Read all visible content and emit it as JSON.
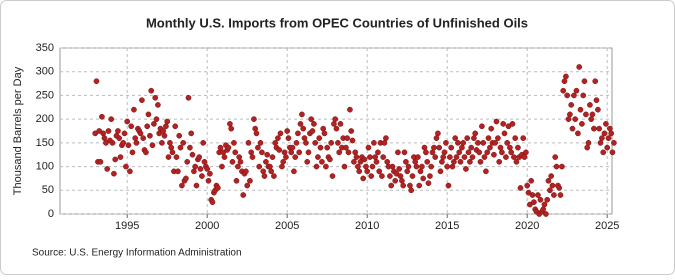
{
  "chart_data": {
    "type": "scatter",
    "title": "Monthly U.S. Imports from OPEC Countries of Unfinished Oils",
    "y_label": "Thousand Barrels per Day",
    "source": "Source: U.S. Energy Information Administration",
    "color": "#b22222",
    "grid": true,
    "xlim": [
      1990.8,
      2025.3
    ],
    "xticks": [
      1995,
      2000,
      2005,
      2010,
      2015,
      2020,
      2025
    ],
    "ylim": [
      0,
      350
    ],
    "yticks": [
      0,
      50,
      100,
      150,
      200,
      250,
      300,
      350
    ],
    "x": [
      1993,
      1993.08,
      1993.17,
      1993.25,
      1993.33,
      1993.42,
      1993.5,
      1993.58,
      1993.67,
      1993.75,
      1993.83,
      1993.92,
      1994,
      1994.08,
      1994.17,
      1994.25,
      1994.33,
      1994.42,
      1994.5,
      1994.58,
      1994.67,
      1994.75,
      1994.83,
      1994.92,
      1995,
      1995.08,
      1995.17,
      1995.25,
      1995.33,
      1995.42,
      1995.5,
      1995.58,
      1995.67,
      1995.75,
      1995.83,
      1995.92,
      1996,
      1996.08,
      1996.17,
      1996.25,
      1996.33,
      1996.42,
      1996.5,
      1996.58,
      1996.67,
      1996.75,
      1996.83,
      1996.92,
      1997,
      1997.08,
      1997.17,
      1997.25,
      1997.33,
      1997.42,
      1997.5,
      1997.58,
      1997.67,
      1997.75,
      1997.83,
      1997.92,
      1998,
      1998.08,
      1998.17,
      1998.25,
      1998.33,
      1998.42,
      1998.5,
      1998.58,
      1998.67,
      1998.75,
      1998.83,
      1998.92,
      1999,
      1999.08,
      1999.17,
      1999.25,
      1999.33,
      1999.42,
      1999.5,
      1999.58,
      1999.67,
      1999.75,
      1999.83,
      1999.92,
      2000,
      2000.08,
      2000.17,
      2000.25,
      2000.33,
      2000.42,
      2000.5,
      2000.58,
      2000.67,
      2000.75,
      2000.83,
      2000.92,
      2001,
      2001.08,
      2001.17,
      2001.25,
      2001.33,
      2001.42,
      2001.5,
      2001.58,
      2001.67,
      2001.75,
      2001.83,
      2001.92,
      2002,
      2002.08,
      2002.17,
      2002.25,
      2002.33,
      2002.42,
      2002.5,
      2002.58,
      2002.67,
      2002.75,
      2002.83,
      2002.92,
      2003,
      2003.08,
      2003.17,
      2003.25,
      2003.33,
      2003.42,
      2003.5,
      2003.58,
      2003.67,
      2003.75,
      2003.83,
      2003.92,
      2004,
      2004.08,
      2004.17,
      2004.25,
      2004.33,
      2004.42,
      2004.5,
      2004.58,
      2004.67,
      2004.75,
      2004.83,
      2004.92,
      2005,
      2005.08,
      2005.17,
      2005.25,
      2005.33,
      2005.42,
      2005.5,
      2005.58,
      2005.67,
      2005.75,
      2005.83,
      2005.92,
      2006,
      2006.08,
      2006.17,
      2006.25,
      2006.33,
      2006.42,
      2006.5,
      2006.58,
      2006.67,
      2006.75,
      2006.83,
      2006.92,
      2007,
      2007.08,
      2007.17,
      2007.25,
      2007.33,
      2007.42,
      2007.5,
      2007.58,
      2007.67,
      2007.75,
      2007.83,
      2007.92,
      2008,
      2008.08,
      2008.17,
      2008.25,
      2008.33,
      2008.42,
      2008.5,
      2008.58,
      2008.67,
      2008.75,
      2008.83,
      2008.92,
      2009,
      2009.08,
      2009.17,
      2009.25,
      2009.33,
      2009.42,
      2009.5,
      2009.58,
      2009.67,
      2009.75,
      2009.83,
      2009.92,
      2010,
      2010.08,
      2010.17,
      2010.25,
      2010.33,
      2010.42,
      2010.5,
      2010.58,
      2010.67,
      2010.75,
      2010.83,
      2010.92,
      2011,
      2011.08,
      2011.17,
      2011.25,
      2011.33,
      2011.42,
      2011.5,
      2011.58,
      2011.67,
      2011.75,
      2011.83,
      2011.92,
      2012,
      2012.08,
      2012.17,
      2012.25,
      2012.33,
      2012.42,
      2012.5,
      2012.58,
      2012.67,
      2012.75,
      2012.83,
      2012.92,
      2013,
      2013.08,
      2013.17,
      2013.25,
      2013.33,
      2013.42,
      2013.5,
      2013.58,
      2013.67,
      2013.75,
      2013.83,
      2013.92,
      2014,
      2014.08,
      2014.17,
      2014.25,
      2014.33,
      2014.42,
      2014.5,
      2014.58,
      2014.67,
      2014.75,
      2014.83,
      2014.92,
      2015,
      2015.08,
      2015.17,
      2015.25,
      2015.33,
      2015.42,
      2015.5,
      2015.58,
      2015.67,
      2015.75,
      2015.83,
      2015.92,
      2016,
      2016.08,
      2016.17,
      2016.25,
      2016.33,
      2016.42,
      2016.5,
      2016.58,
      2016.67,
      2016.75,
      2016.83,
      2016.92,
      2017,
      2017.08,
      2017.17,
      2017.25,
      2017.33,
      2017.42,
      2017.5,
      2017.58,
      2017.67,
      2017.75,
      2017.83,
      2017.92,
      2018,
      2018.08,
      2018.17,
      2018.25,
      2018.33,
      2018.42,
      2018.5,
      2018.58,
      2018.67,
      2018.75,
      2018.83,
      2018.92,
      2019,
      2019.08,
      2019.17,
      2019.25,
      2019.33,
      2019.42,
      2019.5,
      2019.58,
      2019.67,
      2019.75,
      2019.83,
      2019.92,
      2020,
      2020.08,
      2020.17,
      2020.25,
      2020.33,
      2020.42,
      2020.5,
      2020.58,
      2020.67,
      2020.75,
      2020.83,
      2020.92,
      2021,
      2021.08,
      2021.17,
      2021.25,
      2021.33,
      2021.42,
      2021.5,
      2021.58,
      2021.67,
      2021.75,
      2021.83,
      2021.92,
      2022,
      2022.08,
      2022.17,
      2022.25,
      2022.33,
      2022.42,
      2022.5,
      2022.58,
      2022.67,
      2022.75,
      2022.83,
      2022.92,
      2023,
      2023.08,
      2023.17,
      2023.25,
      2023.33,
      2023.42,
      2023.5,
      2023.58,
      2023.67,
      2023.75,
      2023.83,
      2023.92,
      2024,
      2024.08,
      2024.17,
      2024.25,
      2024.33,
      2024.42,
      2024.5,
      2024.58,
      2024.67,
      2024.75,
      2024.83,
      2024.92,
      2025,
      2025.08,
      2025.17,
      2025.25,
      2025.33,
      2025.42
    ],
    "values": [
      170,
      280,
      110,
      175,
      110,
      205,
      170,
      160,
      150,
      95,
      175,
      155,
      200,
      150,
      85,
      115,
      165,
      175,
      160,
      120,
      145,
      150,
      170,
      100,
      195,
      145,
      90,
      185,
      130,
      220,
      160,
      150,
      180,
      175,
      170,
      240,
      160,
      135,
      130,
      185,
      210,
      165,
      260,
      145,
      190,
      245,
      200,
      230,
      170,
      180,
      150,
      175,
      165,
      185,
      195,
      120,
      150,
      140,
      130,
      90,
      185,
      120,
      90,
      165,
      140,
      60,
      150,
      70,
      75,
      110,
      245,
      140,
      170,
      125,
      90,
      100,
      60,
      115,
      120,
      95,
      80,
      150,
      110,
      100,
      95,
      70,
      85,
      30,
      25,
      45,
      50,
      60,
      55,
      130,
      140,
      100,
      130,
      120,
      145,
      135,
      140,
      190,
      180,
      110,
      150,
      130,
      70,
      100,
      120,
      110,
      90,
      40,
      85,
      90,
      60,
      150,
      70,
      130,
      120,
      200,
      180,
      170,
      140,
      100,
      150,
      130,
      90,
      80,
      110,
      125,
      100,
      100,
      90,
      120,
      80,
      150,
      140,
      160,
      135,
      170,
      100,
      110,
      130,
      120,
      175,
      160,
      140,
      130,
      140,
      90,
      120,
      150,
      170,
      130,
      190,
      210,
      180,
      160,
      150,
      110,
      130,
      170,
      200,
      175,
      190,
      150,
      100,
      120,
      160,
      140,
      110,
      180,
      170,
      100,
      140,
      120,
      115,
      150,
      80,
      190,
      200,
      180,
      150,
      130,
      190,
      140,
      160,
      100,
      140,
      160,
      130,
      220,
      175,
      155,
      110,
      130,
      120,
      100,
      90,
      110,
      120,
      75,
      115,
      100,
      90,
      140,
      120,
      80,
      100,
      150,
      120,
      110,
      130,
      90,
      150,
      80,
      120,
      150,
      160,
      110,
      100,
      80,
      60,
      100,
      90,
      70,
      85,
      130,
      95,
      80,
      70,
      60,
      130,
      110,
      90,
      100,
      60,
      50,
      80,
      120,
      110,
      100,
      120,
      60,
      90,
      100,
      75,
      140,
      130,
      110,
      65,
      80,
      100,
      130,
      140,
      120,
      160,
      170,
      140,
      90,
      110,
      120,
      130,
      150,
      100,
      60,
      120,
      140,
      100,
      110,
      160,
      120,
      150,
      130,
      110,
      140,
      150,
      120,
      95,
      160,
      130,
      110,
      140,
      120,
      160,
      170,
      135,
      150,
      130,
      110,
      185,
      150,
      120,
      90,
      130,
      160,
      140,
      180,
      150,
      125,
      150,
      195,
      160,
      110,
      140,
      130,
      190,
      170,
      120,
      150,
      185,
      140,
      130,
      190,
      120,
      160,
      110,
      140,
      120,
      55,
      125,
      160,
      120,
      130,
      60,
      45,
      20,
      70,
      40,
      25,
      10,
      5,
      40,
      0,
      30,
      5,
      10,
      20,
      0,
      30,
      70,
      50,
      80,
      60,
      40,
      120,
      100,
      60,
      55,
      40,
      100,
      260,
      280,
      290,
      250,
      200,
      210,
      230,
      180,
      250,
      200,
      260,
      170,
      310,
      220,
      190,
      250,
      280,
      210,
      140,
      150,
      230,
      200,
      210,
      180,
      280,
      240,
      220,
      180,
      150,
      160,
      130,
      170,
      190,
      140,
      160,
      180,
      170,
      130,
      150
    ]
  }
}
